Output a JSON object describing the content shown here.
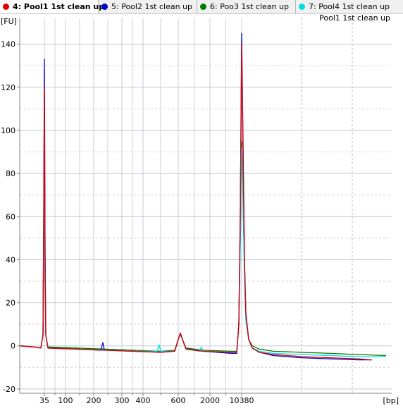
{
  "tabs": [
    {
      "label": "4: Pool1 1st clean up",
      "color": "#e00000",
      "active": true
    },
    {
      "label": "5: Pool2 1st clean up",
      "color": "#0000cc",
      "active": false
    },
    {
      "label": "6: Poo3 1st clean up",
      "color": "#007a00",
      "active": false
    },
    {
      "label": "7: Pool4 1st clean up",
      "color": "#00e0e0",
      "active": false
    }
  ],
  "chart_data": {
    "type": "line",
    "title": "Pool1 1st clean up",
    "ylabel": "[FU]",
    "xlabel": "[bp]",
    "ylim": [
      -22,
      152
    ],
    "yticks": [
      -20,
      0,
      20,
      40,
      60,
      80,
      100,
      120,
      140
    ],
    "xlim": [
      0,
      528
    ],
    "xticks": [
      {
        "x": 35,
        "label": "35"
      },
      {
        "x": 65,
        "label": "100"
      },
      {
        "x": 105,
        "label": "200"
      },
      {
        "x": 145,
        "label": "300"
      },
      {
        "x": 175,
        "label": "400"
      },
      {
        "x": 225,
        "label": "600"
      },
      {
        "x": 270,
        "label": "2000"
      },
      {
        "x": 315,
        "label": "10380"
      }
    ],
    "grid": true,
    "series": [
      {
        "name": "4: Pool1 1st clean up",
        "color": "#e00000",
        "points": [
          [
            0,
            0
          ],
          [
            20,
            -0.5
          ],
          [
            30,
            -1
          ],
          [
            33,
            5
          ],
          [
            34,
            60
          ],
          [
            35,
            120
          ],
          [
            36,
            40
          ],
          [
            37,
            5
          ],
          [
            40,
            -1
          ],
          [
            80,
            -1.5
          ],
          [
            120,
            -2
          ],
          [
            160,
            -2.5
          ],
          [
            200,
            -3
          ],
          [
            220,
            -2.5
          ],
          [
            225,
            3
          ],
          [
            228,
            6
          ],
          [
            231,
            3
          ],
          [
            236,
            -1.5
          ],
          [
            260,
            -2.5
          ],
          [
            300,
            -3
          ],
          [
            308,
            -3
          ],
          [
            311,
            10
          ],
          [
            313,
            60
          ],
          [
            315,
            140
          ],
          [
            317,
            90
          ],
          [
            319,
            40
          ],
          [
            321,
            15
          ],
          [
            325,
            3
          ],
          [
            330,
            -1
          ],
          [
            340,
            -3
          ],
          [
            360,
            -4
          ],
          [
            400,
            -5
          ],
          [
            440,
            -5.5
          ],
          [
            480,
            -6
          ],
          [
            500,
            -6.5
          ]
        ]
      },
      {
        "name": "5: Pool2 1st clean up",
        "color": "#0000cc",
        "points": [
          [
            0,
            0
          ],
          [
            20,
            -0.5
          ],
          [
            30,
            -1
          ],
          [
            33,
            5
          ],
          [
            34,
            60
          ],
          [
            35,
            133
          ],
          [
            36,
            45
          ],
          [
            37,
            5
          ],
          [
            40,
            -1
          ],
          [
            80,
            -1.5
          ],
          [
            115,
            -2
          ],
          [
            118,
            1.5
          ],
          [
            120,
            -2
          ],
          [
            160,
            -2.5
          ],
          [
            200,
            -3
          ],
          [
            220,
            -2.5
          ],
          [
            225,
            3
          ],
          [
            228,
            6
          ],
          [
            231,
            3
          ],
          [
            236,
            -1.5
          ],
          [
            260,
            -2.5
          ],
          [
            300,
            -3.5
          ],
          [
            308,
            -3.5
          ],
          [
            311,
            10
          ],
          [
            313,
            60
          ],
          [
            315,
            145
          ],
          [
            317,
            95
          ],
          [
            319,
            40
          ],
          [
            321,
            15
          ],
          [
            325,
            3
          ],
          [
            330,
            -1
          ],
          [
            340,
            -3
          ],
          [
            360,
            -4.5
          ],
          [
            400,
            -5.5
          ],
          [
            440,
            -6
          ],
          [
            480,
            -6.5
          ],
          [
            500,
            -6.5
          ]
        ]
      },
      {
        "name": "6: Poo3 1st clean up",
        "color": "#007a00",
        "points": [
          [
            0,
            0
          ],
          [
            20,
            -0.5
          ],
          [
            30,
            -1
          ],
          [
            33,
            5
          ],
          [
            34,
            50
          ],
          [
            35,
            100
          ],
          [
            36,
            35
          ],
          [
            37,
            5
          ],
          [
            40,
            -0.5
          ],
          [
            80,
            -1
          ],
          [
            120,
            -1.5
          ],
          [
            160,
            -2
          ],
          [
            200,
            -2.5
          ],
          [
            220,
            -2
          ],
          [
            225,
            3
          ],
          [
            228,
            5.5
          ],
          [
            231,
            3
          ],
          [
            236,
            -1
          ],
          [
            260,
            -2
          ],
          [
            300,
            -2.5
          ],
          [
            308,
            -2.5
          ],
          [
            311,
            10
          ],
          [
            313,
            50
          ],
          [
            315,
            95
          ],
          [
            317,
            70
          ],
          [
            319,
            35
          ],
          [
            321,
            12
          ],
          [
            325,
            3
          ],
          [
            330,
            0
          ],
          [
            340,
            -1.5
          ],
          [
            360,
            -2.5
          ],
          [
            400,
            -3
          ],
          [
            440,
            -3.5
          ],
          [
            480,
            -4
          ],
          [
            520,
            -4.5
          ]
        ]
      },
      {
        "name": "7: Pool4 1st clean up",
        "color": "#00e0e0",
        "points": [
          [
            0,
            0
          ],
          [
            20,
            -0.5
          ],
          [
            30,
            -1
          ],
          [
            33,
            5
          ],
          [
            34,
            45
          ],
          [
            35,
            90
          ],
          [
            36,
            30
          ],
          [
            37,
            5
          ],
          [
            40,
            -1
          ],
          [
            80,
            -1.5
          ],
          [
            120,
            -2
          ],
          [
            160,
            -2.5
          ],
          [
            195,
            -2.5
          ],
          [
            198,
            0.5
          ],
          [
            200,
            -2.5
          ],
          [
            220,
            -2.5
          ],
          [
            225,
            3
          ],
          [
            228,
            6
          ],
          [
            231,
            3
          ],
          [
            236,
            -1.5
          ],
          [
            255,
            -2.5
          ],
          [
            258,
            -0.5
          ],
          [
            260,
            -2.5
          ],
          [
            300,
            -3
          ],
          [
            308,
            -3
          ],
          [
            311,
            10
          ],
          [
            313,
            45
          ],
          [
            315,
            92
          ],
          [
            317,
            65
          ],
          [
            319,
            32
          ],
          [
            321,
            12
          ],
          [
            325,
            3
          ],
          [
            330,
            -1
          ],
          [
            340,
            -2.5
          ],
          [
            360,
            -3.5
          ],
          [
            400,
            -4
          ],
          [
            440,
            -4.5
          ],
          [
            480,
            -5
          ],
          [
            520,
            -5
          ]
        ]
      }
    ]
  }
}
